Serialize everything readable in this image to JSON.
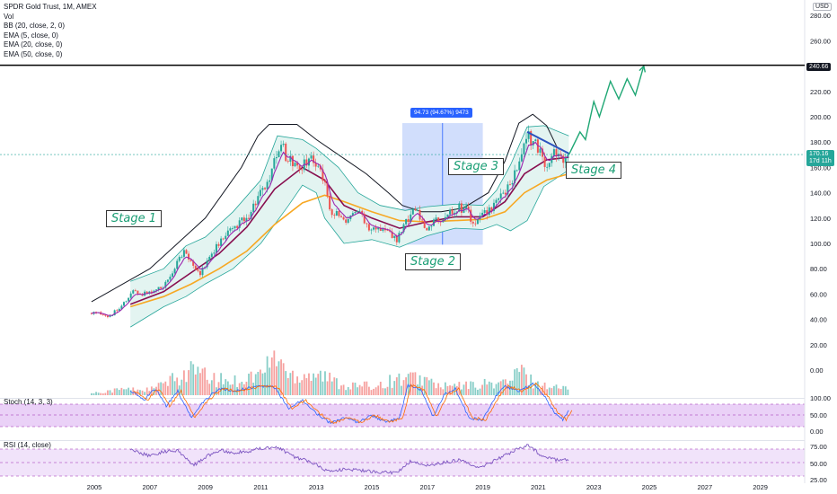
{
  "header": {
    "title": "SPDR Gold Trust, 1M, AMEX",
    "indicators": [
      "Vol",
      "BB (20, close, 2, 0)",
      "EMA (5, close, 0)",
      "EMA (20, close, 0)",
      "EMA (50, close, 0)"
    ],
    "currency": "USD"
  },
  "panes": {
    "stoch_label": "Stoch (14, 3, 3)",
    "rsi_label": "RSI (14, close)"
  },
  "annotations": {
    "stage1": "Stage 1",
    "stage2": "Stage 2",
    "stage3": "Stage 3",
    "stage4": "Stage 4",
    "measure": "94.73 (94.67%) 9473",
    "resistance_label": "240.66",
    "last_price": "170.16",
    "countdown": "17d 11h"
  },
  "colors": {
    "up": "#26a69a",
    "down": "#ef5350",
    "bb_fill": "#e3f4f1",
    "ema5": "#9c27b0",
    "ema20": "#880e4f",
    "ema50": "#f7a823",
    "measure_fill": "#c5d6fb",
    "forecast": "#1fa774",
    "trendline": "#2a52be",
    "stoch_bg": "#ead1f7",
    "rsi_bg": "#f1e3fa"
  },
  "chart_data": {
    "type": "candlestick",
    "price_axis_ticks": [
      280,
      260,
      240,
      220,
      200,
      180,
      160,
      140,
      120,
      100,
      80,
      60,
      40,
      20,
      0
    ],
    "volume_axis_ticks": [
      "40.00",
      "20.00",
      "0.00"
    ],
    "stoch_axis_ticks": [
      "100.00",
      "50.00",
      "0.00"
    ],
    "rsi_axis_ticks": [
      "75.00",
      "50.00",
      "25.00"
    ],
    "time_labels": [
      "2005",
      "2007",
      "2009",
      "2011",
      "2013",
      "2015",
      "2017",
      "2019",
      "2021",
      "2023",
      "2025",
      "2027",
      "2029"
    ],
    "resistance_price": 240.66,
    "last_price": 170.16,
    "price_path": [
      [
        2004.9,
        45
      ],
      [
        2005.5,
        43
      ],
      [
        2006.0,
        50
      ],
      [
        2006.4,
        62
      ],
      [
        2006.8,
        60
      ],
      [
        2007.5,
        66
      ],
      [
        2008.0,
        86
      ],
      [
        2008.2,
        94
      ],
      [
        2008.8,
        75
      ],
      [
        2009.2,
        92
      ],
      [
        2009.9,
        110
      ],
      [
        2010.5,
        120
      ],
      [
        2010.9,
        137
      ],
      [
        2011.3,
        148
      ],
      [
        2011.7,
        180
      ],
      [
        2012.0,
        165
      ],
      [
        2012.5,
        160
      ],
      [
        2012.8,
        172
      ],
      [
        2013.0,
        162
      ],
      [
        2013.3,
        150
      ],
      [
        2013.5,
        123
      ],
      [
        2013.8,
        123
      ],
      [
        2014.0,
        117
      ],
      [
        2014.5,
        127
      ],
      [
        2014.9,
        113
      ],
      [
        2015.5,
        112
      ],
      [
        2015.9,
        102
      ],
      [
        2016.3,
        120
      ],
      [
        2016.6,
        131
      ],
      [
        2016.9,
        110
      ],
      [
        2017.5,
        120
      ],
      [
        2018.0,
        128
      ],
      [
        2018.4,
        128
      ],
      [
        2018.7,
        114
      ],
      [
        2019.0,
        122
      ],
      [
        2019.5,
        133
      ],
      [
        2019.8,
        141
      ],
      [
        2020.2,
        155
      ],
      [
        2020.6,
        185
      ],
      [
        2021.0,
        175
      ],
      [
        2021.2,
        162
      ],
      [
        2021.5,
        170
      ],
      [
        2021.9,
        168
      ],
      [
        2022.1,
        170
      ]
    ],
    "volume_heights": [
      [
        2005,
        4
      ],
      [
        2006,
        10
      ],
      [
        2007,
        9
      ],
      [
        2008,
        28
      ],
      [
        2008.5,
        42
      ],
      [
        2009.2,
        26
      ],
      [
        2010,
        23
      ],
      [
        2011,
        35
      ],
      [
        2011.6,
        68
      ],
      [
        2012,
        32
      ],
      [
        2013,
        38
      ],
      [
        2013.4,
        28
      ],
      [
        2014,
        16
      ],
      [
        2015,
        15
      ],
      [
        2016,
        27
      ],
      [
        2016.8,
        28
      ],
      [
        2017.5,
        14
      ],
      [
        2018.5,
        16
      ],
      [
        2019.5,
        20
      ],
      [
        2020.0,
        22
      ],
      [
        2020.3,
        42
      ],
      [
        2020.7,
        25
      ],
      [
        2021,
        18
      ],
      [
        2022.1,
        10
      ]
    ],
    "forecast_path": [
      [
        2022.1,
        170
      ],
      [
        2022.5,
        188
      ],
      [
        2022.7,
        182
      ],
      [
        2023.0,
        212
      ],
      [
        2023.2,
        200
      ],
      [
        2023.6,
        228
      ],
      [
        2023.9,
        214
      ],
      [
        2024.2,
        230
      ],
      [
        2024.5,
        217
      ],
      [
        2024.8,
        240
      ]
    ],
    "trendline": [
      [
        2020.6,
        188
      ],
      [
        2022.1,
        171
      ]
    ],
    "measure_box": {
      "x_start": 2016.1,
      "x_end": 2019.0,
      "y_low": 99,
      "y_high": 195
    },
    "bb_upper_path": [
      [
        2006.3,
        70
      ],
      [
        2007.5,
        80
      ],
      [
        2008.3,
        98
      ],
      [
        2009.0,
        105
      ],
      [
        2010.0,
        125
      ],
      [
        2011.0,
        150
      ],
      [
        2011.6,
        185
      ],
      [
        2012.5,
        182
      ],
      [
        2013.0,
        175
      ],
      [
        2013.8,
        160
      ],
      [
        2014.5,
        140
      ],
      [
        2015.3,
        130
      ],
      [
        2016.2,
        126
      ],
      [
        2017.0,
        129
      ],
      [
        2018.0,
        131
      ],
      [
        2019.0,
        130
      ],
      [
        2019.5,
        142
      ],
      [
        2020.0,
        162
      ],
      [
        2020.6,
        192
      ],
      [
        2021.2,
        193
      ],
      [
        2022.1,
        185
      ]
    ],
    "bb_lower_path": [
      [
        2006.3,
        34
      ],
      [
        2007.5,
        50
      ],
      [
        2008.3,
        58
      ],
      [
        2009.0,
        68
      ],
      [
        2010.0,
        80
      ],
      [
        2011.0,
        100
      ],
      [
        2012.0,
        130
      ],
      [
        2012.5,
        146
      ],
      [
        2013.0,
        140
      ],
      [
        2013.3,
        120
      ],
      [
        2014.0,
        100
      ],
      [
        2015.0,
        103
      ],
      [
        2016.0,
        97
      ],
      [
        2017.0,
        106
      ],
      [
        2018.0,
        112
      ],
      [
        2019.0,
        111
      ],
      [
        2019.5,
        115
      ],
      [
        2020.0,
        110
      ],
      [
        2020.6,
        118
      ],
      [
        2021.2,
        145
      ],
      [
        2022.1,
        158
      ]
    ],
    "ema50_path": [
      [
        2006.3,
        50
      ],
      [
        2007.5,
        58
      ],
      [
        2008.5,
        68
      ],
      [
        2009.5,
        80
      ],
      [
        2010.5,
        94
      ],
      [
        2011.5,
        115
      ],
      [
        2012.5,
        132
      ],
      [
        2013.3,
        138
      ],
      [
        2014.0,
        133
      ],
      [
        2015.0,
        125
      ],
      [
        2016.0,
        118
      ],
      [
        2017.0,
        117
      ],
      [
        2018.0,
        118
      ],
      [
        2019.0,
        119
      ],
      [
        2019.8,
        125
      ],
      [
        2020.5,
        140
      ],
      [
        2021.3,
        150
      ],
      [
        2022.1,
        155
      ]
    ],
    "ema20_path": [
      [
        2006.3,
        52
      ],
      [
        2007.5,
        62
      ],
      [
        2008.5,
        77
      ],
      [
        2009.5,
        92
      ],
      [
        2010.5,
        113
      ],
      [
        2011.5,
        143
      ],
      [
        2012.5,
        160
      ],
      [
        2013.3,
        150
      ],
      [
        2014.0,
        130
      ],
      [
        2015.0,
        120
      ],
      [
        2016.0,
        112
      ],
      [
        2017.0,
        117
      ],
      [
        2018.0,
        121
      ],
      [
        2019.0,
        121
      ],
      [
        2019.8,
        133
      ],
      [
        2020.5,
        155
      ],
      [
        2021.3,
        166
      ],
      [
        2022.1,
        168
      ]
    ],
    "cup_curve_path": [
      [
        2004.9,
        54
      ],
      [
        2007.0,
        80
      ],
      [
        2009.0,
        120
      ],
      [
        2010.3,
        160
      ],
      [
        2010.9,
        185
      ],
      [
        2011.3,
        194
      ],
      [
        2012.3,
        194
      ],
      [
        2013.0,
        182
      ],
      [
        2013.8,
        170
      ],
      [
        2014.8,
        155
      ],
      [
        2015.6,
        140
      ],
      [
        2016.1,
        130
      ],
      [
        2016.8,
        125
      ],
      [
        2017.5,
        125
      ],
      [
        2018.3,
        128
      ],
      [
        2019.2,
        140
      ],
      [
        2019.8,
        165
      ],
      [
        2020.3,
        195
      ],
      [
        2020.8,
        202
      ],
      [
        2021.3,
        193
      ],
      [
        2021.7,
        175
      ]
    ],
    "stoch_path": [
      [
        2006.3,
        80
      ],
      [
        2006.8,
        60
      ],
      [
        2007.2,
        85
      ],
      [
        2007.6,
        45
      ],
      [
        2008.0,
        80
      ],
      [
        2008.5,
        20
      ],
      [
        2009.0,
        60
      ],
      [
        2009.5,
        85
      ],
      [
        2010.0,
        80
      ],
      [
        2010.5,
        85
      ],
      [
        2011.0,
        90
      ],
      [
        2011.5,
        88
      ],
      [
        2012.0,
        40
      ],
      [
        2012.5,
        60
      ],
      [
        2013.0,
        30
      ],
      [
        2013.5,
        8
      ],
      [
        2014.0,
        20
      ],
      [
        2014.5,
        10
      ],
      [
        2015.0,
        25
      ],
      [
        2015.5,
        10
      ],
      [
        2016.0,
        20
      ],
      [
        2016.3,
        92
      ],
      [
        2016.8,
        80
      ],
      [
        2017.2,
        20
      ],
      [
        2017.6,
        70
      ],
      [
        2018.0,
        85
      ],
      [
        2018.5,
        20
      ],
      [
        2019.0,
        15
      ],
      [
        2019.5,
        70
      ],
      [
        2019.8,
        90
      ],
      [
        2020.3,
        80
      ],
      [
        2020.8,
        95
      ],
      [
        2021.2,
        70
      ],
      [
        2021.6,
        30
      ],
      [
        2021.9,
        15
      ],
      [
        2022.1,
        35
      ]
    ],
    "rsi_path": [
      [
        2006.3,
        72
      ],
      [
        2007.0,
        62
      ],
      [
        2007.5,
        70
      ],
      [
        2008.0,
        72
      ],
      [
        2008.6,
        45
      ],
      [
        2009.0,
        60
      ],
      [
        2009.5,
        72
      ],
      [
        2010.0,
        68
      ],
      [
        2010.5,
        70
      ],
      [
        2011.0,
        75
      ],
      [
        2011.6,
        78
      ],
      [
        2012.2,
        60
      ],
      [
        2012.8,
        52
      ],
      [
        2013.4,
        35
      ],
      [
        2014.0,
        38
      ],
      [
        2014.6,
        36
      ],
      [
        2015.2,
        33
      ],
      [
        2015.9,
        32
      ],
      [
        2016.4,
        52
      ],
      [
        2017.0,
        45
      ],
      [
        2017.6,
        50
      ],
      [
        2018.2,
        55
      ],
      [
        2018.8,
        40
      ],
      [
        2019.5,
        55
      ],
      [
        2020.0,
        68
      ],
      [
        2020.6,
        82
      ],
      [
        2021.2,
        60
      ],
      [
        2021.6,
        55
      ],
      [
        2022.1,
        56
      ]
    ]
  }
}
